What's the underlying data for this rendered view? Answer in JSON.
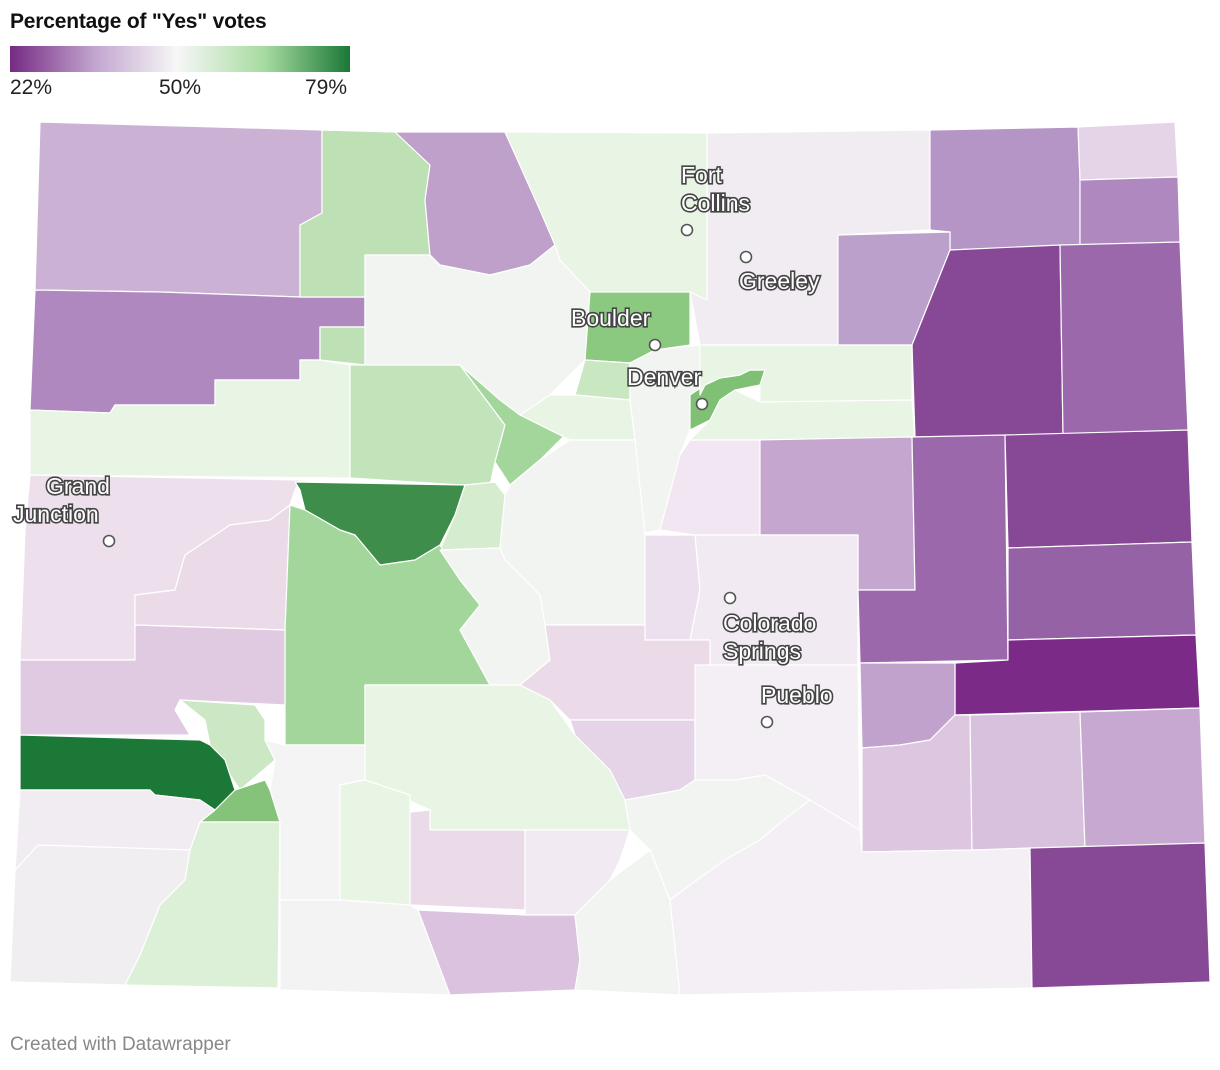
{
  "legend": {
    "title": "Percentage of \"Yes\" votes",
    "min_label": "22%",
    "mid_label": "50%",
    "max_label": "79%",
    "scale": {
      "min": 22,
      "mid": 50,
      "max": 79
    },
    "colors": {
      "low": "#762a83",
      "mid": "#f7f7f7",
      "high": "#1b7837"
    }
  },
  "cities": [
    {
      "name": "Fort Collins",
      "lines": [
        "Fort",
        "Collins"
      ]
    },
    {
      "name": "Greeley",
      "lines": [
        "Greeley"
      ]
    },
    {
      "name": "Boulder",
      "lines": [
        "Boulder"
      ]
    },
    {
      "name": "Denver",
      "lines": [
        "Denver"
      ]
    },
    {
      "name": "Grand Junction",
      "lines": [
        "Grand",
        "Junction"
      ]
    },
    {
      "name": "Colorado Springs",
      "lines": [
        "Colorado",
        "Springs"
      ]
    },
    {
      "name": "Pueblo",
      "lines": [
        "Pueblo"
      ]
    }
  ],
  "footer": "Created with Datawrapper"
}
